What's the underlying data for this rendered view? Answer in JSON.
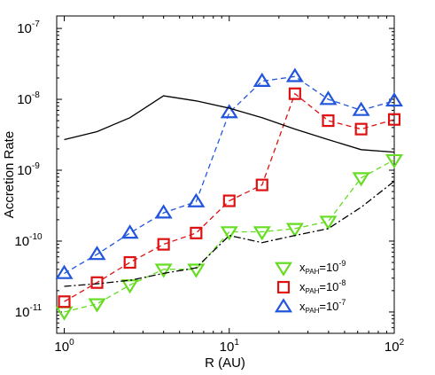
{
  "chart_data": {
    "type": "line",
    "xlabel": "R (AU)",
    "ylabel": "Accretion Rate",
    "xscale": "log",
    "yscale": "log",
    "xlim": [
      0.9,
      100
    ],
    "ylim": [
      5e-12,
      1.5e-07
    ],
    "x_ticks": [
      {
        "value": 1,
        "base": "10",
        "exp": "0"
      },
      {
        "value": 10,
        "base": "10",
        "exp": "1"
      },
      {
        "value": 100,
        "base": "10",
        "exp": "2"
      }
    ],
    "y_ticks": [
      {
        "value": 1e-11,
        "base": "10",
        "exp": "-11"
      },
      {
        "value": 1e-10,
        "base": "10",
        "exp": "-10"
      },
      {
        "value": 1e-09,
        "base": "10",
        "exp": "-9"
      },
      {
        "value": 1e-08,
        "base": "10",
        "exp": "-8"
      },
      {
        "value": 1e-07,
        "base": "10",
        "exp": "-7"
      }
    ],
    "grid": false,
    "legend_position": "bottom-right",
    "series": [
      {
        "name": "x_PAH=10^-9",
        "legend_main": "x",
        "legend_sub": "PAH",
        "legend_eq": "=10",
        "legend_exp": "-9",
        "color": "#66dd22",
        "marker": "triangle-down",
        "line": "dashed",
        "x": [
          1.0,
          1.58,
          2.5,
          4.0,
          6.3,
          10.0,
          15.8,
          25.0,
          39.8,
          63.0,
          100.0
        ],
        "y": [
          1e-11,
          1.3e-11,
          2.4e-11,
          4e-11,
          4e-11,
          1.35e-10,
          1.35e-10,
          1.5e-10,
          1.9e-10,
          7.8e-10,
          1.4e-09
        ]
      },
      {
        "name": "x_PAH=10^-8",
        "legend_main": "x",
        "legend_sub": "PAH",
        "legend_eq": "=10",
        "legend_exp": "-8",
        "color": "#dd1111",
        "marker": "square",
        "line": "dashed",
        "x": [
          1.0,
          1.58,
          2.5,
          4.0,
          6.3,
          10.0,
          15.8,
          25.0,
          39.8,
          63.0,
          100.0
        ],
        "y": [
          1.4e-11,
          2.6e-11,
          5e-11,
          9e-11,
          1.3e-10,
          3.7e-10,
          6.2e-10,
          1.2e-08,
          5e-09,
          3.8e-09,
          5.2e-09
        ]
      },
      {
        "name": "x_PAH=10^-7",
        "legend_main": "x",
        "legend_sub": "PAH",
        "legend_eq": "=10",
        "legend_exp": "-7",
        "color": "#2255dd",
        "marker": "triangle-up",
        "line": "dashed",
        "x": [
          1.0,
          1.58,
          2.5,
          4.0,
          6.3,
          10.0,
          15.8,
          25.0,
          39.8,
          63.0,
          100.0
        ],
        "y": [
          3.5e-11,
          6.5e-11,
          1.3e-10,
          2.5e-10,
          3.6e-10,
          6.5e-09,
          1.8e-08,
          2.1e-08,
          1e-08,
          7e-09,
          9.5e-09
        ]
      },
      {
        "color": "#000000",
        "line": "solid",
        "marker": "none",
        "x": [
          1.0,
          1.58,
          2.5,
          4.0,
          6.3,
          10.0,
          15.8,
          25.0,
          39.8,
          63.0,
          100.0
        ],
        "y": [
          2.7e-09,
          3.5e-09,
          5.5e-09,
          1.12e-08,
          9.5e-09,
          7.5e-09,
          5.5e-09,
          3.8e-09,
          2.7e-09,
          1.95e-09,
          1.8e-09
        ]
      },
      {
        "color": "#000000",
        "line": "dash-dot",
        "marker": "none",
        "x": [
          1.0,
          1.58,
          2.5,
          4.0,
          6.3,
          10.0,
          15.8,
          25.0,
          39.8,
          63.0,
          100.0
        ],
        "y": [
          2.3e-11,
          2.5e-11,
          2.8e-11,
          3.5e-11,
          4.2e-11,
          1.2e-10,
          9.5e-11,
          1.2e-10,
          1.5e-10,
          3e-10,
          7e-10
        ]
      }
    ]
  }
}
